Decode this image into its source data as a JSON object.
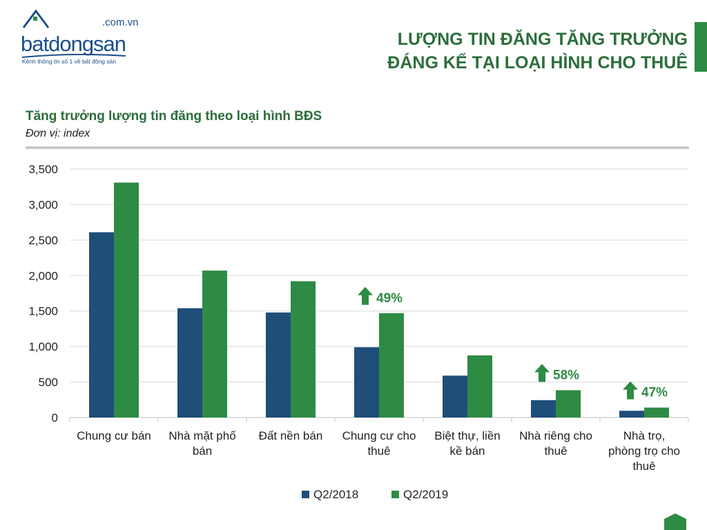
{
  "logo": {
    "domain": ".com.vn",
    "wordmark": "batdongsan",
    "tagline": "Kênh thông tin số 1 về bất động sản"
  },
  "header": {
    "title_line1": "LƯỢNG TIN ĐĂNG TĂNG TRƯỞNG",
    "title_line2": "ĐÁNG KỂ TẠI LOẠI HÌNH CHO THUÊ"
  },
  "colors": {
    "series_2018": "#1f4e79",
    "series_2019": "#2e8b44",
    "arrow": "#2e8b44",
    "title_green": "#2b6e3a"
  },
  "chart_data": {
    "type": "bar",
    "title": "Tăng trưởng lượng tin đăng theo loại hình BĐS",
    "subtitle": "Đơn vị: index",
    "categories": [
      [
        "Chung cư bán"
      ],
      [
        "Nhà mặt phố",
        "bán"
      ],
      [
        "Đất nền bán"
      ],
      [
        "Chung cư cho",
        "thuê"
      ],
      [
        "Biệt thự, liền",
        "kề bán"
      ],
      [
        "Nhà riêng cho",
        "thuê"
      ],
      [
        "Nhà trọ,",
        "phòng trọ cho",
        "thuê"
      ]
    ],
    "series": [
      {
        "name": "Q2/2018",
        "values": [
          2610,
          1540,
          1480,
          990,
          590,
          245,
          95
        ]
      },
      {
        "name": "Q2/2019",
        "values": [
          3310,
          2070,
          1920,
          1470,
          875,
          385,
          140
        ]
      }
    ],
    "ylim": [
      0,
      3500
    ],
    "yticks": [
      "0",
      "500",
      "1,000",
      "1,500",
      "2,000",
      "2,500",
      "3,000",
      "3,500"
    ],
    "ytick_values": [
      0,
      500,
      1000,
      1500,
      2000,
      2500,
      3000,
      3500
    ],
    "grid": true,
    "legend_position": "bottom",
    "annotations": [
      {
        "category_index": 3,
        "text": "49%"
      },
      {
        "category_index": 5,
        "text": "58%"
      },
      {
        "category_index": 6,
        "text": "47%"
      }
    ]
  }
}
